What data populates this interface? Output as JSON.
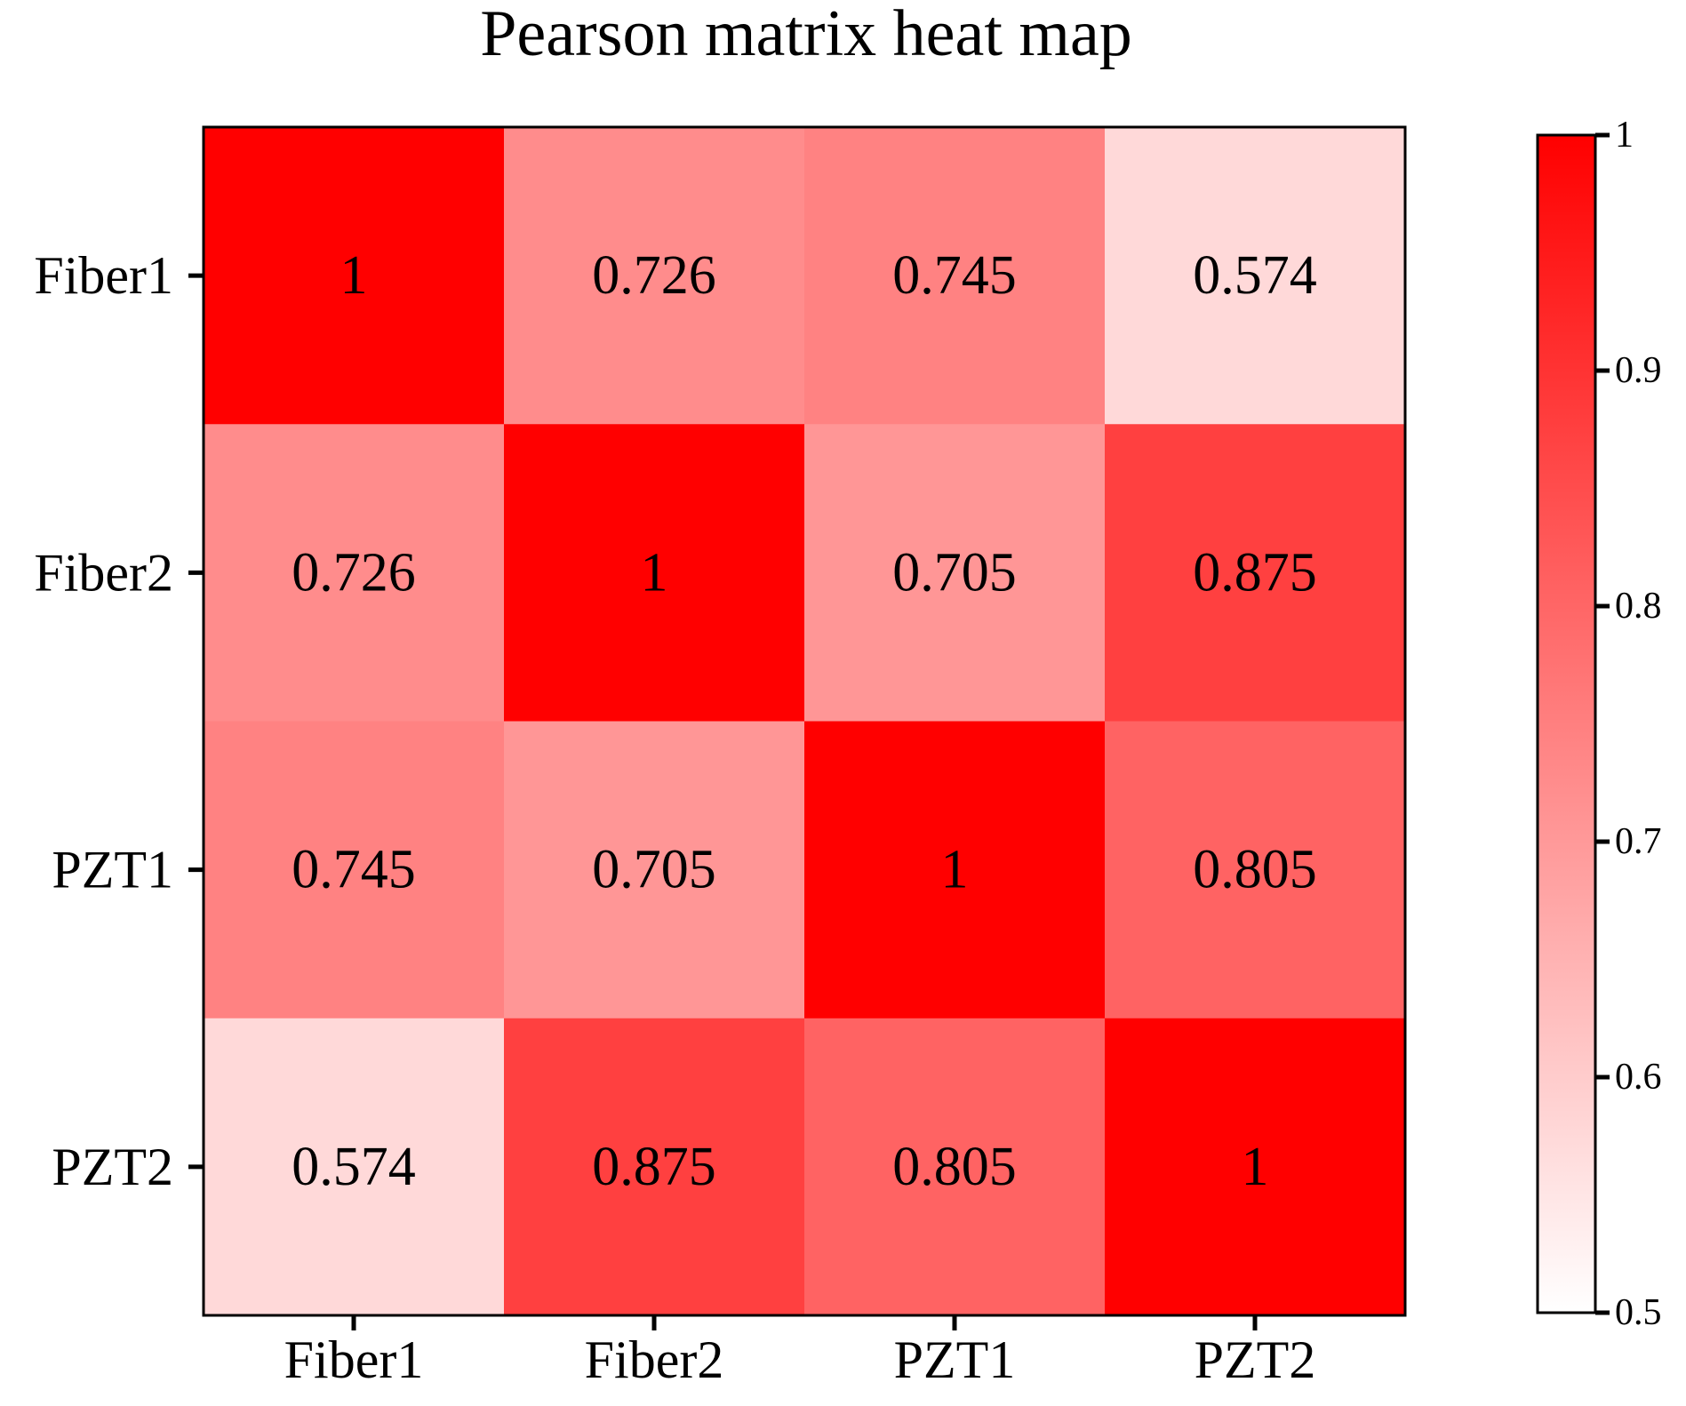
{
  "chart_data": {
    "type": "heatmap",
    "title": "Pearson matrix heat map",
    "row_labels": [
      "Fiber1",
      "Fiber2",
      "PZT1",
      "PZT2"
    ],
    "col_labels": [
      "Fiber1",
      "Fiber2",
      "PZT1",
      "PZT2"
    ],
    "values": [
      [
        1,
        0.726,
        0.745,
        0.574
      ],
      [
        0.726,
        1,
        0.705,
        0.875
      ],
      [
        0.745,
        0.705,
        1,
        0.805
      ],
      [
        0.574,
        0.875,
        0.805,
        1
      ]
    ],
    "value_labels": [
      [
        "1",
        "0.726",
        "0.745",
        "0.574"
      ],
      [
        "0.726",
        "1",
        "0.705",
        "0.875"
      ],
      [
        "0.745",
        "0.705",
        "1",
        "0.805"
      ],
      [
        "0.574",
        "0.875",
        "0.805",
        "1"
      ]
    ],
    "colorbar": {
      "min": 0.5,
      "max": 1,
      "ticks": [
        0.5,
        0.6,
        0.7,
        0.8,
        0.9,
        1
      ],
      "tick_labels": [
        "0.5",
        "0.6",
        "0.7",
        "0.8",
        "0.9",
        "1"
      ],
      "color_low": "#ffffff",
      "color_high": "#ff0000"
    },
    "colors": {
      "axis": "#000000",
      "text": "#000000"
    }
  }
}
